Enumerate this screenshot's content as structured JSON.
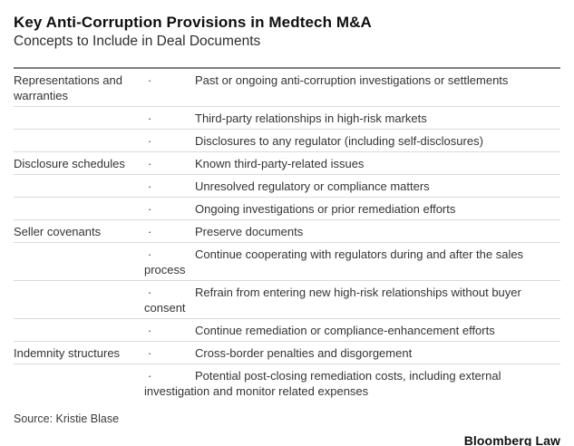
{
  "chart_data": {
    "type": "table",
    "title": "Key Anti-Corruption Provisions in Medtech M&A",
    "subtitle": "Concepts to Include in Deal Documents",
    "bullet": "·",
    "rows": [
      {
        "category": "Representations and warranties",
        "item": "Past or ongoing anti-corruption investigations or settlements"
      },
      {
        "category": "",
        "item": "Third-party relationships in high-risk markets"
      },
      {
        "category": "",
        "item": "Disclosures to any regulator (including self-disclosures)"
      },
      {
        "category": "Disclosure schedules",
        "item": "Known third-party-related issues"
      },
      {
        "category": "",
        "item": "Unresolved regulatory or compliance matters"
      },
      {
        "category": "",
        "item": "Ongoing investigations or prior remediation efforts"
      },
      {
        "category": "Seller covenants",
        "item": "Preserve documents"
      },
      {
        "category": "",
        "item": "Continue cooperating with regulators during and after the sales process"
      },
      {
        "category": "",
        "item": "Refrain from entering new high-risk relationships without buyer consent"
      },
      {
        "category": "",
        "item": "Continue remediation or compliance-enhancement efforts"
      },
      {
        "category": "Indemnity structures",
        "item": "Cross-border penalties and disgorgement"
      },
      {
        "category": "",
        "item": "Potential post-closing remediation costs, including external investigation and monitor related expenses"
      }
    ],
    "source": "Source: Kristie Blase",
    "brand": "Bloomberg Law",
    "layout": {
      "legend_position": "none",
      "grid": "horizontal-rules-only"
    }
  },
  "colors": {
    "background": "#ffffff",
    "title_text": "#0f0f0f",
    "body_text": "#343434",
    "rule_heavy": "#7d7d7d",
    "rule_light": "#dadada"
  }
}
